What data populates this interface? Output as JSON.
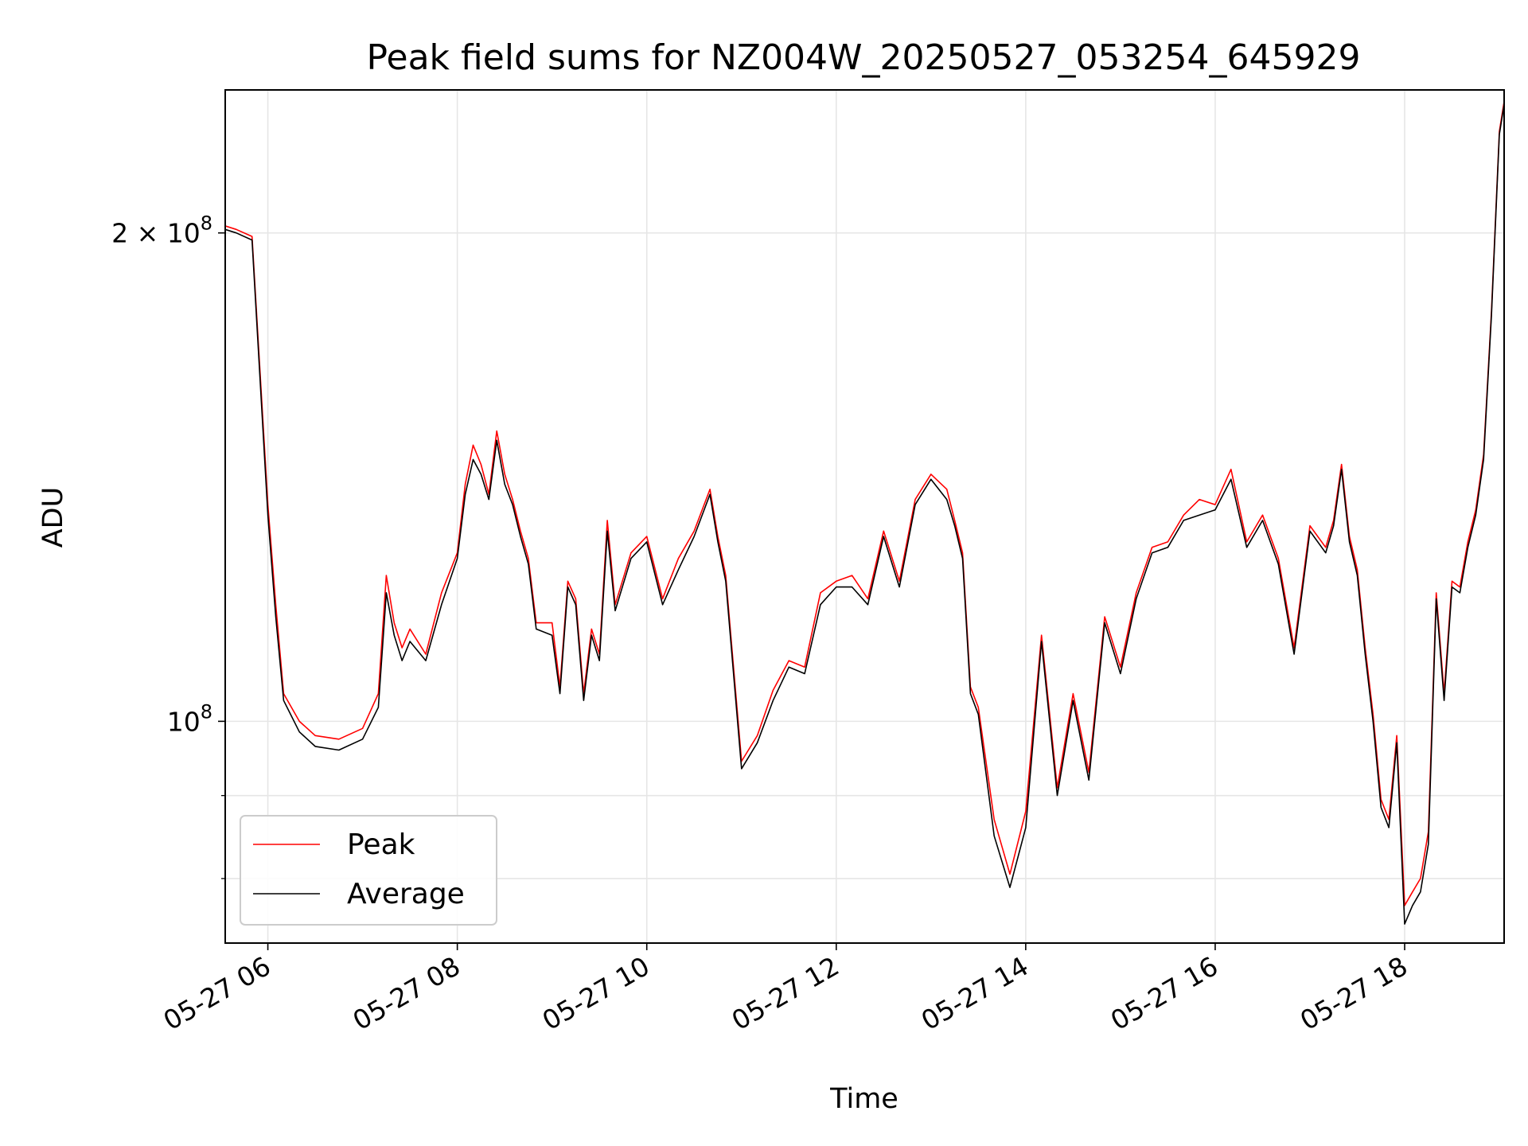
{
  "chart_data": {
    "type": "line",
    "title": "Peak field sums for NZ004W_20250527_053254_645929",
    "xlabel": "Time",
    "ylabel": "ADU",
    "yscale": "log",
    "grid": true,
    "legend_position": "lower-left",
    "xlim": [
      "2025-05-27 05:33",
      "2025-05-27 19:03"
    ],
    "ylim": [
      73000000,
      245000000
    ],
    "x_ticks": [
      {
        "value": "2025-05-27 06:00",
        "label": "05-27 06"
      },
      {
        "value": "2025-05-27 08:00",
        "label": "05-27 08"
      },
      {
        "value": "2025-05-27 10:00",
        "label": "05-27 10"
      },
      {
        "value": "2025-05-27 12:00",
        "label": "05-27 12"
      },
      {
        "value": "2025-05-27 14:00",
        "label": "05-27 14"
      },
      {
        "value": "2025-05-27 16:00",
        "label": "05-27 16"
      },
      {
        "value": "2025-05-27 18:00",
        "label": "05-27 18"
      }
    ],
    "y_ticks_major": [
      {
        "value": 100000000,
        "label_base": "10",
        "label_exp": "8",
        "label_prefix": ""
      },
      {
        "value": 200000000,
        "label_base": "10",
        "label_exp": "8",
        "label_prefix": "2 × "
      }
    ],
    "y_ticks_minor": [
      80000000,
      90000000
    ],
    "series": [
      {
        "name": "Peak",
        "color": "#ff0000"
      },
      {
        "name": "Average",
        "color": "#000000"
      }
    ],
    "x": [
      "05:33",
      "05:40",
      "05:50",
      "06:00",
      "06:05",
      "06:10",
      "06:20",
      "06:30",
      "06:45",
      "07:00",
      "07:10",
      "07:15",
      "07:20",
      "07:25",
      "07:30",
      "07:40",
      "07:50",
      "08:00",
      "08:05",
      "08:10",
      "08:15",
      "08:20",
      "08:25",
      "08:30",
      "08:35",
      "08:40",
      "08:45",
      "08:50",
      "09:00",
      "09:05",
      "09:10",
      "09:15",
      "09:20",
      "09:25",
      "09:30",
      "09:35",
      "09:40",
      "09:50",
      "10:00",
      "10:10",
      "10:20",
      "10:30",
      "10:40",
      "10:45",
      "10:50",
      "11:00",
      "11:10",
      "11:20",
      "11:30",
      "11:40",
      "11:50",
      "12:00",
      "12:10",
      "12:20",
      "12:30",
      "12:40",
      "12:50",
      "13:00",
      "13:10",
      "13:15",
      "13:20",
      "13:25",
      "13:30",
      "13:40",
      "13:50",
      "14:00",
      "14:10",
      "14:20",
      "14:30",
      "14:40",
      "14:50",
      "15:00",
      "15:10",
      "15:20",
      "15:30",
      "15:40",
      "15:50",
      "16:00",
      "16:10",
      "16:20",
      "16:30",
      "16:40",
      "16:50",
      "17:00",
      "17:10",
      "17:15",
      "17:20",
      "17:25",
      "17:30",
      "17:35",
      "17:40",
      "17:45",
      "17:50",
      "17:55",
      "18:00",
      "18:05",
      "18:10",
      "18:15",
      "18:20",
      "18:25",
      "18:30",
      "18:35",
      "18:40",
      "18:45",
      "18:50",
      "18:55",
      "19:00",
      "19:03"
    ],
    "average": [
      201000000,
      200000000,
      198000000,
      134000000,
      116000000,
      103000000,
      98500000,
      96500000,
      96000000,
      97500000,
      102000000,
      120000000,
      113000000,
      109000000,
      112000000,
      109000000,
      118000000,
      126000000,
      138000000,
      145000000,
      142000000,
      137000000,
      149000000,
      140000000,
      136000000,
      130000000,
      125000000,
      114000000,
      113000000,
      104000000,
      121000000,
      118000000,
      103000000,
      113000000,
      109000000,
      131000000,
      117000000,
      126000000,
      129000000,
      118000000,
      124000000,
      130000000,
      138000000,
      129000000,
      122000000,
      93500000,
      97000000,
      103000000,
      108000000,
      107000000,
      118000000,
      121000000,
      121000000,
      118000000,
      130000000,
      121000000,
      136000000,
      141000000,
      137000000,
      132000000,
      126000000,
      104000000,
      101000000,
      85000000,
      79000000,
      86000000,
      112000000,
      90000000,
      103000000,
      92000000,
      115000000,
      107000000,
      119000000,
      127000000,
      128000000,
      133000000,
      134000000,
      135000000,
      141000000,
      128000000,
      133000000,
      125000000,
      110000000,
      131000000,
      127000000,
      132000000,
      143000000,
      129000000,
      123000000,
      110000000,
      100000000,
      88500000,
      86000000,
      97000000,
      75000000,
      77000000,
      78500000,
      84000000,
      119000000,
      103000000,
      121000000,
      120000000,
      128000000,
      134000000,
      145000000,
      178000000,
      230000000,
      240000000
    ],
    "peak": [
      202000000,
      201000000,
      199000000,
      136000000,
      118000000,
      104000000,
      100000000,
      98000000,
      97500000,
      99000000,
      104000000,
      123000000,
      115000000,
      111000000,
      114000000,
      110000000,
      120000000,
      127000000,
      140000000,
      148000000,
      144000000,
      138000000,
      151000000,
      142000000,
      137000000,
      131000000,
      126000000,
      115000000,
      115000000,
      105000000,
      122000000,
      119000000,
      104000000,
      114000000,
      110000000,
      133000000,
      118000000,
      127000000,
      130000000,
      119000000,
      126000000,
      131000000,
      139000000,
      130000000,
      123000000,
      94500000,
      98000000,
      104500000,
      109000000,
      108000000,
      120000000,
      122000000,
      123000000,
      119000000,
      131000000,
      122000000,
      137000000,
      142000000,
      139000000,
      133000000,
      127000000,
      105000000,
      102000000,
      87000000,
      80500000,
      88000000,
      113000000,
      91000000,
      104000000,
      93000000,
      116000000,
      108000000,
      120000000,
      128000000,
      129000000,
      134000000,
      137000000,
      136000000,
      143000000,
      129000000,
      134000000,
      126000000,
      111000000,
      132000000,
      128000000,
      133000000,
      144000000,
      130000000,
      124000000,
      111000000,
      101000000,
      89500000,
      87000000,
      98000000,
      77000000,
      78500000,
      80000000,
      85500000,
      120000000,
      104000000,
      122000000,
      121000000,
      129000000,
      135000000,
      146000000,
      179000000,
      231000000,
      241000000
    ]
  }
}
